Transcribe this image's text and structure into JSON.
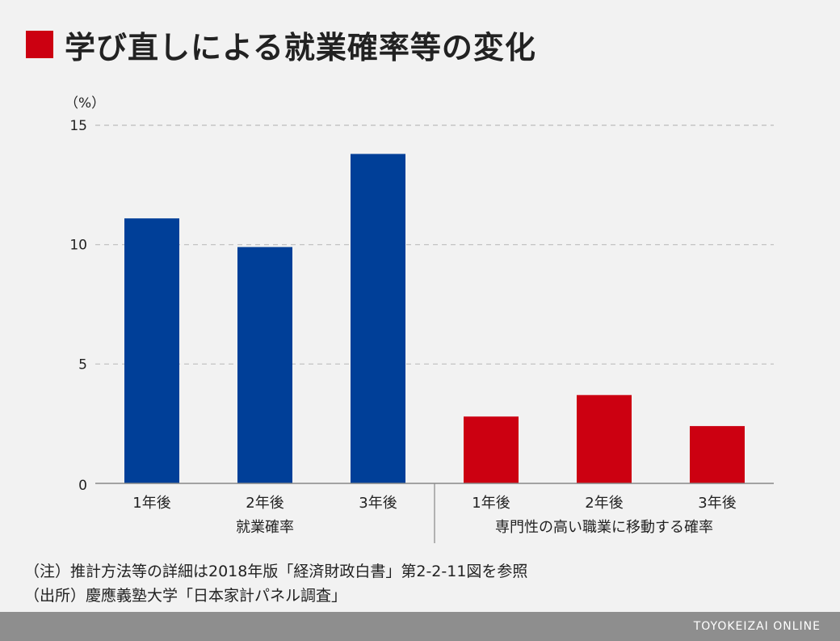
{
  "title": "学び直しによる就業確率等の変化",
  "colors": {
    "title_marker": "#cc0011",
    "group1": "#003f98",
    "group2": "#cc0011",
    "grid": "#bdbdbd",
    "axis": "#888888",
    "footer": "#8e8e8e"
  },
  "chart_data": {
    "type": "bar",
    "ylabel": "（%）",
    "ylim": [
      0,
      15
    ],
    "yticks": [
      0,
      5,
      10,
      15
    ],
    "grid": "dashed-horizontal",
    "categories": [
      "1年後",
      "2年後",
      "3年後",
      "1年後",
      "2年後",
      "3年後"
    ],
    "groups": [
      {
        "name": "就業確率",
        "categories": [
          "1年後",
          "2年後",
          "3年後"
        ],
        "values": [
          11.1,
          9.9,
          13.8
        ]
      },
      {
        "name": "専門性の高い職業に移動する確率",
        "categories": [
          "1年後",
          "2年後",
          "3年後"
        ],
        "values": [
          2.8,
          3.7,
          2.4
        ]
      }
    ]
  },
  "notes": [
    "（注）推計方法等の詳細は2018年版「経済財政白書」第2-2-11図を参照",
    "（出所）慶應義塾大学「日本家計パネル調査」"
  ],
  "footer": {
    "brand": "TOYOKEIZAI ONLINE"
  }
}
